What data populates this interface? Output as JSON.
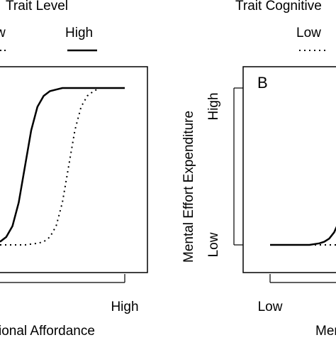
{
  "chart_data": [
    {
      "type": "line",
      "panel_label": "",
      "legend_title": "Trait Level",
      "legend_placement": "top",
      "xlabel": "ional Affordance",
      "ylabel": "",
      "x_ticks": [
        "",
        "High"
      ],
      "y_ticks": [],
      "xlim": [
        0,
        1
      ],
      "ylim": [
        0,
        1
      ],
      "grid": false,
      "series": [
        {
          "name": "w",
          "style": "dotted",
          "x": [
            0.0,
            0.1,
            0.2,
            0.3,
            0.35,
            0.4,
            0.45,
            0.5,
            0.55,
            0.6,
            0.65,
            0.7,
            0.75,
            0.8,
            0.9,
            1.0
          ],
          "y": [
            0.0,
            0.0,
            0.0,
            0.01,
            0.02,
            0.05,
            0.12,
            0.27,
            0.5,
            0.73,
            0.88,
            0.95,
            0.98,
            1.0,
            1.0,
            1.0
          ]
        },
        {
          "name": "High",
          "style": "solid",
          "x": [
            0.0,
            0.05,
            0.1,
            0.15,
            0.2,
            0.25,
            0.3,
            0.35,
            0.4,
            0.45,
            0.5,
            0.6,
            0.7,
            0.8,
            0.9,
            1.0
          ],
          "y": [
            0.02,
            0.05,
            0.12,
            0.27,
            0.5,
            0.73,
            0.88,
            0.95,
            0.98,
            0.99,
            1.0,
            1.0,
            1.0,
            1.0,
            1.0,
            1.0
          ]
        }
      ]
    },
    {
      "type": "line",
      "panel_label": "B",
      "legend_title": "Trait Cognitive",
      "legend_placement": "top",
      "xlabel": "Menta",
      "ylabel": "Mental Effort Expenditure",
      "x_ticks": [
        "Low",
        ""
      ],
      "y_ticks": [
        "Low",
        "High"
      ],
      "xlim": [
        0,
        1
      ],
      "ylim": [
        0,
        1
      ],
      "grid": false,
      "series": [
        {
          "name": "Low",
          "style": "dotted",
          "x": [
            0.0,
            0.2,
            0.4,
            0.6,
            0.8,
            1.0
          ],
          "y": [
            0.0,
            0.0,
            0.0,
            0.0,
            0.0,
            0.0
          ]
        },
        {
          "name": "",
          "style": "solid",
          "x": [
            0.0,
            0.1,
            0.2,
            0.3,
            0.4,
            0.5,
            0.55,
            0.6,
            0.65,
            0.7,
            0.75,
            0.8,
            0.85,
            0.9,
            0.95,
            1.0
          ],
          "y": [
            0.0,
            0.0,
            0.0,
            0.0,
            0.0,
            0.01,
            0.02,
            0.04,
            0.08,
            0.15,
            0.28,
            0.45,
            0.62,
            0.76,
            0.86,
            0.92
          ]
        }
      ]
    }
  ]
}
